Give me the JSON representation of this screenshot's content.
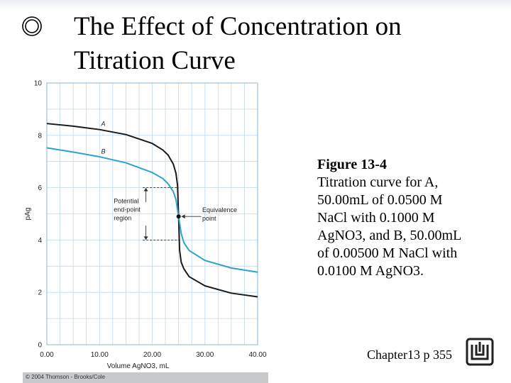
{
  "slide": {
    "title_line_1": "The Effect of Concentration on",
    "title_line_2": "Titration Curve",
    "bullet_icon": "double-circle-icon",
    "caption_heading": "Figure 13-4",
    "caption_lines": [
      "Titration curve for A,",
      "50.00mL of 0.0500 M",
      "NaCl with 0.1000 M",
      "AgNO3, and B, 50.00mL",
      "of 0.00500 M NaCl with",
      "0.0100 M AgNO3."
    ],
    "footer_ref": "Chapter13 p 355",
    "logo_icon": "university-logo-icon",
    "credit": "© 2004 Thomson - Brooks/Cole"
  },
  "chart_data": {
    "type": "line",
    "xlabel": "Volume AgNO3, mL",
    "ylabel": "pAg",
    "xlim": [
      0,
      40
    ],
    "ylim": [
      0,
      10
    ],
    "x_ticks": [
      0,
      10,
      20,
      30,
      40
    ],
    "x_tick_labels": [
      "0.00",
      "10.00",
      "20.00",
      "30.00",
      "40.00"
    ],
    "y_ticks": [
      0,
      2,
      4,
      6,
      8,
      10
    ],
    "y_tick_labels": [
      "0",
      "2",
      "4",
      "6",
      "8",
      "10"
    ],
    "grid": true,
    "series": [
      {
        "name": "A",
        "color": "#1a1a1a",
        "x": [
          0,
          5,
          10,
          15,
          20,
          22,
          23,
          24,
          24.5,
          24.8,
          25,
          25.2,
          25.5,
          26,
          27,
          30,
          35,
          40
        ],
        "y": [
          8.45,
          8.35,
          8.22,
          8.03,
          7.69,
          7.44,
          7.25,
          6.9,
          6.55,
          6.1,
          4.9,
          3.6,
          3.15,
          2.9,
          2.6,
          2.25,
          1.97,
          1.83
        ]
      },
      {
        "name": "B",
        "color": "#2aa3cc",
        "x": [
          0,
          5,
          10,
          15,
          20,
          22,
          23,
          24,
          24.5,
          25,
          25.5,
          26,
          27,
          30,
          35,
          40
        ],
        "y": [
          7.52,
          7.36,
          7.18,
          6.95,
          6.58,
          6.35,
          6.15,
          5.85,
          5.55,
          4.9,
          4.25,
          3.9,
          3.6,
          3.22,
          2.93,
          2.77
        ]
      }
    ],
    "annotations": {
      "region_label": [
        "Potential",
        "end-point",
        "region"
      ],
      "region_y_range": [
        4,
        6
      ],
      "equivalence_label": [
        "Equivalence",
        "point"
      ],
      "equivalence_point": [
        25,
        4.9
      ]
    }
  }
}
